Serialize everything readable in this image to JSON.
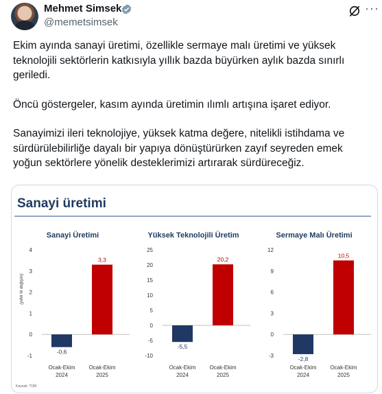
{
  "author": {
    "name": "Mehmet Simsek",
    "handle": "@memetsimsek"
  },
  "header_icons": [
    "verified-badge-icon",
    "grok-icon",
    "more-icon"
  ],
  "tweet": {
    "paragraphs": [
      "Ekim ayında sanayi üretimi, özellikle sermaye malı üretimi ve yüksek teknolojili sektörlerin katkısıyla yıllık bazda büyürken aylık bazda sınırlı geriledi.",
      "Öncü göstergeler, kasım ayında üretimin ılımlı artışına işaret ediyor.",
      "Sanayimizi ileri teknolojiye, yüksek katma değere, nitelikli istihdama ve sürdürülebilirliğe dayalı bir yapıya dönüştürürken zayıf seyreden emek yoğun sektörlere yönelik desteklerimizi artırarak sürdüreceğiz."
    ]
  },
  "card": {
    "title": "Sanayi üretimi",
    "ylabel": "(yıllık % değişim)",
    "source": "Kaynak: TÜİK"
  },
  "colors": {
    "bar_2024": "#1f3864",
    "bar_2025": "#c00000",
    "accent": "#1d9bf0"
  },
  "chart_data": [
    {
      "type": "bar",
      "title": "Sanayi Üretimi",
      "categories": [
        "Ocak-Ekim 2024",
        "Ocak-Ekim 2025"
      ],
      "values": [
        -0.6,
        3.3
      ],
      "value_labels": [
        "-0,6",
        "3,3"
      ],
      "ylabel": "(yıllık % değişim)",
      "ylim": [
        -1,
        4
      ],
      "yticks": [
        -1,
        0,
        1,
        2,
        3,
        4
      ],
      "ytick_labels": [
        "-1",
        "0",
        "1",
        "2",
        "3",
        "4"
      ]
    },
    {
      "type": "bar",
      "title": "Yüksek Teknolojili Üretim",
      "categories": [
        "Ocak-Ekim 2024",
        "Ocak-Ekim 2025"
      ],
      "values": [
        -5.5,
        20.2
      ],
      "value_labels": [
        "-5,5",
        "20,2"
      ],
      "ylim": [
        -10,
        25
      ],
      "yticks": [
        -10,
        -5,
        0,
        5,
        10,
        15,
        20,
        25
      ],
      "ytick_labels": [
        "-10",
        "-5",
        "0",
        "5",
        "10",
        "15",
        "20",
        "25"
      ]
    },
    {
      "type": "bar",
      "title": "Sermaye Malı Üretimi",
      "categories": [
        "Ocak-Ekim 2024",
        "Ocak-Ekim 2025"
      ],
      "values": [
        -2.8,
        10.5
      ],
      "value_labels": [
        "-2,8",
        "10,5"
      ],
      "ylim": [
        -3,
        12
      ],
      "yticks": [
        -3,
        0,
        3,
        6,
        9,
        12
      ],
      "ytick_labels": [
        "-3",
        "0",
        "3",
        "6",
        "9",
        "12"
      ]
    }
  ],
  "category_lines": [
    [
      "Ocak-Ekim",
      "2024"
    ],
    [
      "Ocak-Ekim",
      "2025"
    ]
  ]
}
